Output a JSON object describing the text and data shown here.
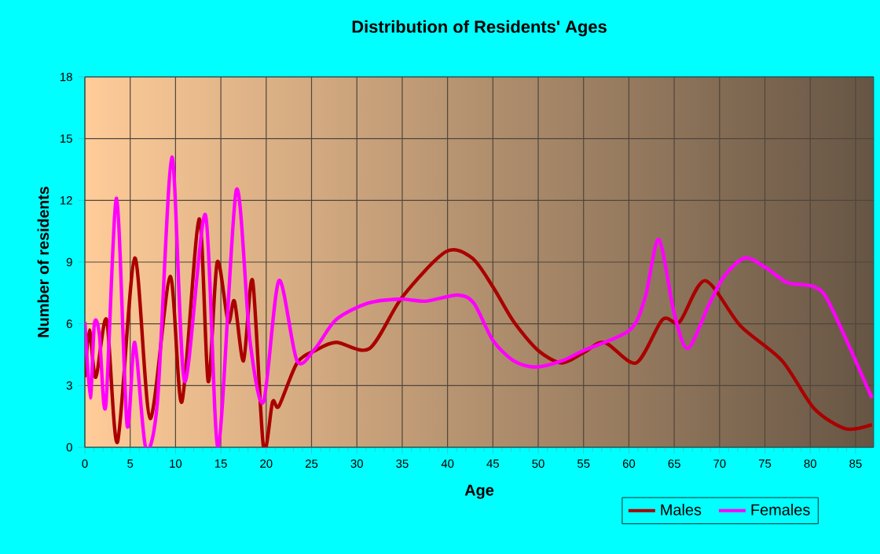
{
  "chart_data": {
    "type": "line",
    "title": "Distribution of Residents' Ages",
    "xlabel": "Age",
    "ylabel": "Number of residents",
    "xlim": [
      0,
      87
    ],
    "xticks": [
      0,
      5,
      10,
      15,
      20,
      25,
      30,
      35,
      40,
      45,
      50,
      55,
      60,
      65,
      70,
      75,
      80,
      85
    ],
    "ylim": [
      0,
      18
    ],
    "yticks": [
      0,
      3,
      6,
      9,
      12,
      15,
      18
    ],
    "grid": true,
    "legend": "bottom right",
    "marker": "none",
    "line_style": "solid",
    "series": [
      {
        "name": "Males",
        "color": "#aa0000",
        "x": [
          0,
          0.5,
          1.2,
          2.4,
          3.6,
          5.5,
          7.2,
          9.4,
          10.7,
          12.6,
          13.6,
          14.6,
          15.8,
          16.5,
          17.5,
          18.5,
          19.7,
          20.7,
          21.4,
          23.4,
          25.4,
          27.7,
          31.4,
          35,
          39.8,
          42.7,
          45,
          47.3,
          50,
          52.6,
          55,
          57.3,
          60.8,
          63.7,
          65.6,
          68.4,
          72.3,
          76.9,
          80.4,
          83.9,
          86.8
        ],
        "values": [
          3.4,
          5.7,
          3.4,
          6.2,
          0.25,
          9.2,
          1.4,
          8.3,
          2.2,
          11.1,
          3.2,
          9.0,
          6.1,
          7.1,
          4.2,
          8.1,
          0,
          2.2,
          2.0,
          4.1,
          4.7,
          5.1,
          4.8,
          7.3,
          9.5,
          9.2,
          7.8,
          6.1,
          4.7,
          4.1,
          4.6,
          5.1,
          4.1,
          6.2,
          6.1,
          8.1,
          5.9,
          4.2,
          1.9,
          0.9,
          1.1
        ]
      },
      {
        "name": "Females",
        "color": "#ff00ff",
        "x": [
          0,
          0.6,
          1.05,
          1.6,
          2.3,
          3.5,
          4.65,
          5.5,
          6.7,
          8.0,
          9.6,
          11,
          13.3,
          14.7,
          16.7,
          18.2,
          19.7,
          21.4,
          23.4,
          25.4,
          27.7,
          31.2,
          34.7,
          37.6,
          41.1,
          42.9,
          45,
          47.3,
          49.7,
          52.6,
          55,
          60.1,
          61.8,
          63.3,
          65,
          66.5,
          68.8,
          70.5,
          72.8,
          75.2,
          77.5,
          80.4,
          82.1,
          86.8
        ],
        "values": [
          6.1,
          2.4,
          6.0,
          5.5,
          2.0,
          12.1,
          1.1,
          5.1,
          0,
          2.2,
          14.1,
          3.2,
          11.3,
          0,
          12.5,
          5.2,
          2.2,
          8.1,
          4.2,
          4.8,
          6.2,
          7.0,
          7.2,
          7.1,
          7.4,
          7.0,
          5.2,
          4.2,
          3.9,
          4.2,
          4.7,
          5.7,
          7.3,
          10.1,
          6.5,
          4.8,
          6.9,
          8.3,
          9.2,
          8.7,
          8.0,
          7.8,
          7.0,
          2.4
        ]
      }
    ]
  }
}
